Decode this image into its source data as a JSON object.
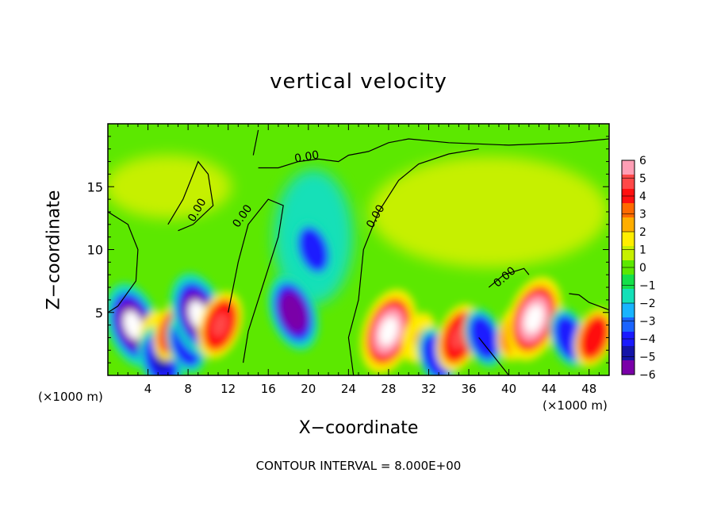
{
  "chart_data": {
    "type": "heatmap",
    "title": "vertical velocity",
    "xlabel": "X−coordinate",
    "ylabel": "Z−coordinate",
    "x_unit_label": "(×1000 m)",
    "footer": "CONTOUR INTERVAL = 8.000E+00",
    "xlim": [
      0,
      50
    ],
    "ylim": [
      0,
      20
    ],
    "x_ticks": [
      4,
      8,
      12,
      16,
      20,
      24,
      28,
      32,
      36,
      40,
      44,
      48
    ],
    "y_ticks": [
      5,
      10,
      15
    ],
    "colorbar": {
      "ticks": [
        "6",
        "5",
        "4",
        "3",
        "2",
        "1",
        "0",
        "−1",
        "−2",
        "−3",
        "−4",
        "−5",
        "−6"
      ],
      "range": [
        -6,
        6
      ],
      "colors": [
        "#ff9eb5",
        "#ff4848",
        "#ff1010",
        "#ff6a00",
        "#ffae00",
        "#ffee00",
        "#c6f000",
        "#5ce800",
        "#14e04a",
        "#14e0b8",
        "#18b4ff",
        "#1a64ff",
        "#1a1aff",
        "#1414a8",
        "#7a00a8"
      ]
    },
    "contour_labels": [
      "0.00",
      "0.00",
      "0.00",
      "0.00",
      "0.00",
      "0.00"
    ],
    "features": [
      {
        "x": 2.5,
        "z": 4.0,
        "w": -7
      },
      {
        "x": 4.5,
        "z": 3.5,
        "w": 2
      },
      {
        "x": 5.3,
        "z": 1.2,
        "w": -5
      },
      {
        "x": 6.5,
        "z": 3.5,
        "w": 4
      },
      {
        "x": 7.8,
        "z": 2.5,
        "w": -4
      },
      {
        "x": 9.0,
        "z": 4.8,
        "w": -7
      },
      {
        "x": 11.2,
        "z": 4.0,
        "w": 5
      },
      {
        "x": 18.5,
        "z": 5.0,
        "w": -6
      },
      {
        "x": 20.5,
        "z": 10.0,
        "w": -4
      },
      {
        "x": 28.0,
        "z": 3.5,
        "w": 7
      },
      {
        "x": 31.0,
        "z": 3.0,
        "w": 3
      },
      {
        "x": 32.8,
        "z": 1.5,
        "w": -4
      },
      {
        "x": 35.0,
        "z": 3.0,
        "w": 5
      },
      {
        "x": 37.5,
        "z": 3.0,
        "w": -4
      },
      {
        "x": 40.8,
        "z": 3.5,
        "w": 4
      },
      {
        "x": 42.5,
        "z": 4.5,
        "w": 7
      },
      {
        "x": 46.0,
        "z": 3.0,
        "w": -4
      },
      {
        "x": 48.5,
        "z": 3.0,
        "w": 4
      }
    ]
  }
}
